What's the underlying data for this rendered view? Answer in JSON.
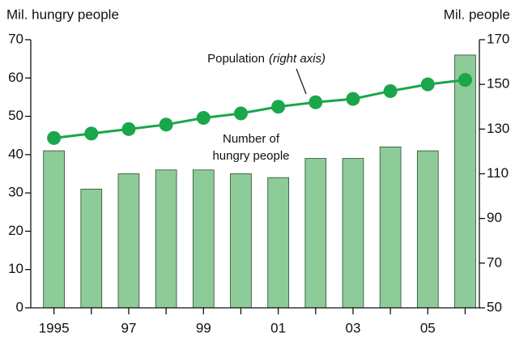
{
  "chart_data": {
    "type": "bar",
    "y_label": "Mil. hungry people",
    "y2_label": "Mil. people",
    "annotations": [
      "Population",
      "(right axis)",
      "Number of",
      "hungry people"
    ],
    "categories": [
      "1995",
      null,
      "97",
      null,
      "99",
      null,
      "01",
      null,
      "03",
      null,
      "05",
      null
    ],
    "series": [
      {
        "type": "bar",
        "color": "#8dcb98",
        "values": [
          41,
          31,
          35,
          36,
          36,
          35,
          34,
          39,
          39,
          42,
          41,
          66
        ]
      },
      {
        "type": "line",
        "axis": "y2",
        "color": "#1aa64a",
        "values": [
          126,
          128,
          130,
          132,
          135,
          137,
          140,
          142,
          143.5,
          147,
          150,
          152
        ]
      }
    ],
    "ylim": [
      0,
      70
    ],
    "yticks": [
      0,
      10,
      20,
      30,
      40,
      50,
      60,
      70
    ],
    "y2lim": [
      50,
      170
    ],
    "y2ticks": [
      50,
      70,
      90,
      110,
      130,
      150,
      170
    ],
    "grid": false
  }
}
